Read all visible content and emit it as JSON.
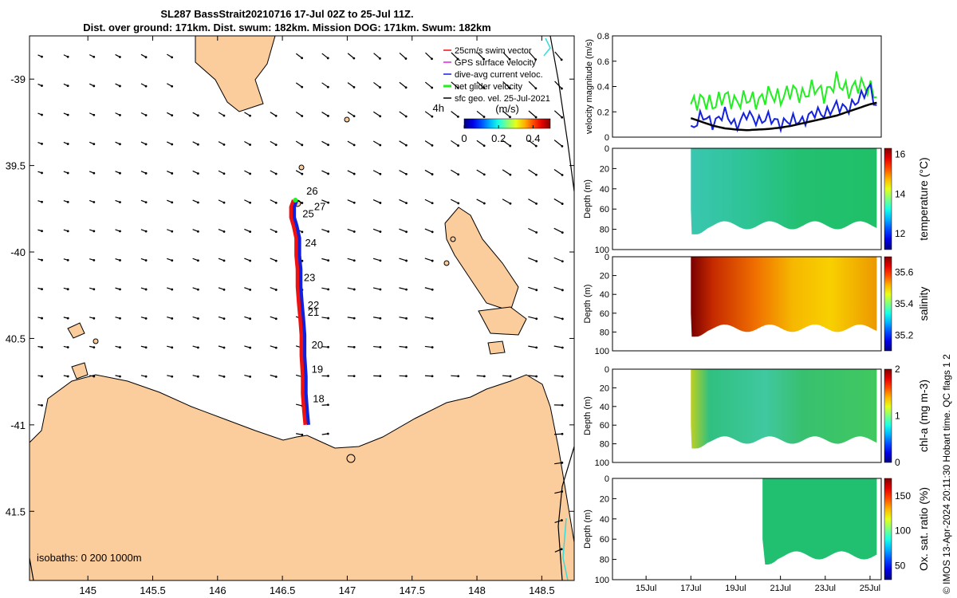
{
  "title": {
    "line1": "SL287 BassStrait20210716 17-Jul 02Z to 25-Jul 11Z.",
    "line2": "Dist. over ground: 171km. Dist. swum: 182km. Mission DOG: 171km. Swum: 182km"
  },
  "credit": "© IMOS 13-Apr-2024 20:11:30 Hobart time. QC flags 1 2",
  "colors": {
    "land": "#fbcc9c",
    "track_red": "#ee1111",
    "track_blue": "#1020dd",
    "velocity_green": "#22ee22",
    "velocity_blue": "#1522dd",
    "geo_black": "#000000",
    "coast_cyan": "#33dddd"
  },
  "chart_data": [
    {
      "type": "map",
      "xlim": [
        144.55,
        148.75
      ],
      "ylim": [
        -41.9,
        -38.75
      ],
      "xticks": [
        145,
        145.5,
        146,
        146.5,
        147,
        147.5,
        148,
        148.5
      ],
      "yticks": [
        -39,
        -39.5,
        -40,
        -40.5,
        -41,
        -41.5
      ],
      "xtick_labels": [
        "145",
        "145.5",
        "146",
        "146.5",
        "147",
        "147.5",
        "148",
        "148.5"
      ],
      "ytick_labels": [
        "-39",
        "39.5",
        "-40",
        "40.5",
        "-41",
        "41.5"
      ],
      "legend": {
        "position": "top-right",
        "entries": [
          {
            "label": "25cm/s swim vector",
            "color": "#ee1111"
          },
          {
            "label": "GPS surface velocity",
            "color": "#dd22dd"
          },
          {
            "label": "dive-avg current veloc.",
            "color": "#1020dd"
          },
          {
            "label": "net glider velocity",
            "color": "#22ee22"
          },
          {
            "label": "sfc geo. vel. 25-Jul-2021",
            "color": "#000000"
          }
        ],
        "scale_note": "4h"
      },
      "colorbar": {
        "label": "(m/s)",
        "ticks": [
          0,
          0.2,
          0.4
        ],
        "tick_labels": [
          "0",
          "0.2",
          "0.4"
        ],
        "range": [
          0,
          0.5
        ]
      },
      "isobaths_label": "isobaths: 0  200  1000m",
      "track": {
        "lon": [
          146.69,
          146.68,
          146.67,
          146.67,
          146.66,
          146.66,
          146.65,
          146.64,
          146.63,
          146.63,
          146.62,
          146.62,
          146.6,
          146.58,
          146.58,
          146.6
        ],
        "lat": [
          -41.0,
          -40.92,
          -40.82,
          -40.72,
          -40.6,
          -40.48,
          -40.38,
          -40.3,
          -40.2,
          -40.1,
          -40.02,
          -39.92,
          -39.85,
          -39.8,
          -39.74,
          -39.7
        ]
      },
      "day_labels": [
        {
          "text": "18",
          "lon": 146.73,
          "lat": -40.85
        },
        {
          "text": "19",
          "lon": 146.72,
          "lat": -40.68
        },
        {
          "text": "20",
          "lon": 146.72,
          "lat": -40.54
        },
        {
          "text": "21",
          "lon": 146.69,
          "lat": -40.35
        },
        {
          "text": "22",
          "lon": 146.69,
          "lat": -40.31
        },
        {
          "text": "23",
          "lon": 146.66,
          "lat": -40.15
        },
        {
          "text": "24",
          "lon": 146.67,
          "lat": -39.95
        },
        {
          "text": "25",
          "lon": 146.65,
          "lat": -39.78
        },
        {
          "text": "26",
          "lon": 146.68,
          "lat": -39.65
        },
        {
          "text": "27",
          "lon": 146.74,
          "lat": -39.74
        }
      ]
    },
    {
      "type": "line",
      "ylabel": "velocity magnitude (m/s)",
      "ylim": [
        0,
        0.8
      ],
      "yticks": [
        0,
        0.2,
        0.4,
        0.6,
        0.8
      ],
      "ytick_labels": [
        "0",
        "0.2",
        "0.4",
        "0.6",
        "0.8"
      ],
      "x": [
        17,
        17.5,
        18,
        18.5,
        19,
        19.5,
        20,
        20.5,
        21,
        21.5,
        22,
        22.5,
        23,
        23.5,
        24,
        24.5,
        25,
        25.3
      ],
      "series": [
        {
          "color": "#22ee22",
          "values": [
            0.26,
            0.3,
            0.25,
            0.33,
            0.27,
            0.31,
            0.28,
            0.35,
            0.3,
            0.38,
            0.32,
            0.4,
            0.33,
            0.45,
            0.36,
            0.42,
            0.38,
            0.3
          ]
        },
        {
          "color": "#1522dd",
          "values": [
            0.05,
            0.18,
            0.1,
            0.2,
            0.08,
            0.19,
            0.12,
            0.16,
            0.1,
            0.14,
            0.12,
            0.2,
            0.18,
            0.25,
            0.22,
            0.3,
            0.4,
            0.1
          ]
        },
        {
          "color": "#000000",
          "values": [
            0.15,
            0.12,
            0.09,
            0.07,
            0.06,
            0.055,
            0.06,
            0.065,
            0.075,
            0.09,
            0.11,
            0.13,
            0.15,
            0.17,
            0.2,
            0.23,
            0.26,
            0.28
          ]
        }
      ]
    },
    {
      "type": "heatmap",
      "ylabel": "Depth (m)",
      "ylim": [
        100,
        0
      ],
      "yticks": [
        0,
        20,
        40,
        60,
        80,
        100
      ],
      "ytick_labels": [
        "0",
        "20",
        "40",
        "60",
        "80",
        "100"
      ],
      "clabel": "temperature (°C)",
      "cticks": [
        "12",
        "14",
        "16"
      ],
      "crange": [
        11.2,
        16.3
      ]
    },
    {
      "type": "heatmap",
      "ylabel": "Depth (m)",
      "ylim": [
        100,
        0
      ],
      "yticks": [
        0,
        20,
        40,
        60,
        80,
        100
      ],
      "ytick_labels": [
        "0",
        "20",
        "40",
        "60",
        "80",
        "100"
      ],
      "clabel": "salinity",
      "cticks": [
        "35.2",
        "35.4",
        "35.6"
      ],
      "crange": [
        35.1,
        35.7
      ]
    },
    {
      "type": "heatmap",
      "ylabel": "Depth (m)",
      "ylim": [
        100,
        0
      ],
      "yticks": [
        0,
        20,
        40,
        60,
        80,
        100
      ],
      "ytick_labels": [
        "0",
        "20",
        "40",
        "60",
        "80",
        "100"
      ],
      "clabel": "chl-a (mg m-3)",
      "cticks": [
        "0",
        "1",
        "2"
      ],
      "crange": [
        0,
        2
      ]
    },
    {
      "type": "heatmap",
      "ylabel": "Depth (m)",
      "ylim": [
        100,
        0
      ],
      "yticks": [
        0,
        20,
        40,
        60,
        80,
        100
      ],
      "ytick_labels": [
        "0",
        "20",
        "40",
        "60",
        "80",
        "100"
      ],
      "clabel": "Ox. sat. ratio (%)",
      "cticks": [
        "50",
        "100",
        "150"
      ],
      "crange": [
        30,
        175
      ],
      "xticks": [
        15,
        17,
        19,
        21,
        23,
        25
      ],
      "xtick_labels": [
        "15Jul",
        "17Jul",
        "19Jul",
        "21Jul",
        "23Jul",
        "25Jul"
      ],
      "xlim": [
        13.5,
        25.5
      ]
    }
  ]
}
